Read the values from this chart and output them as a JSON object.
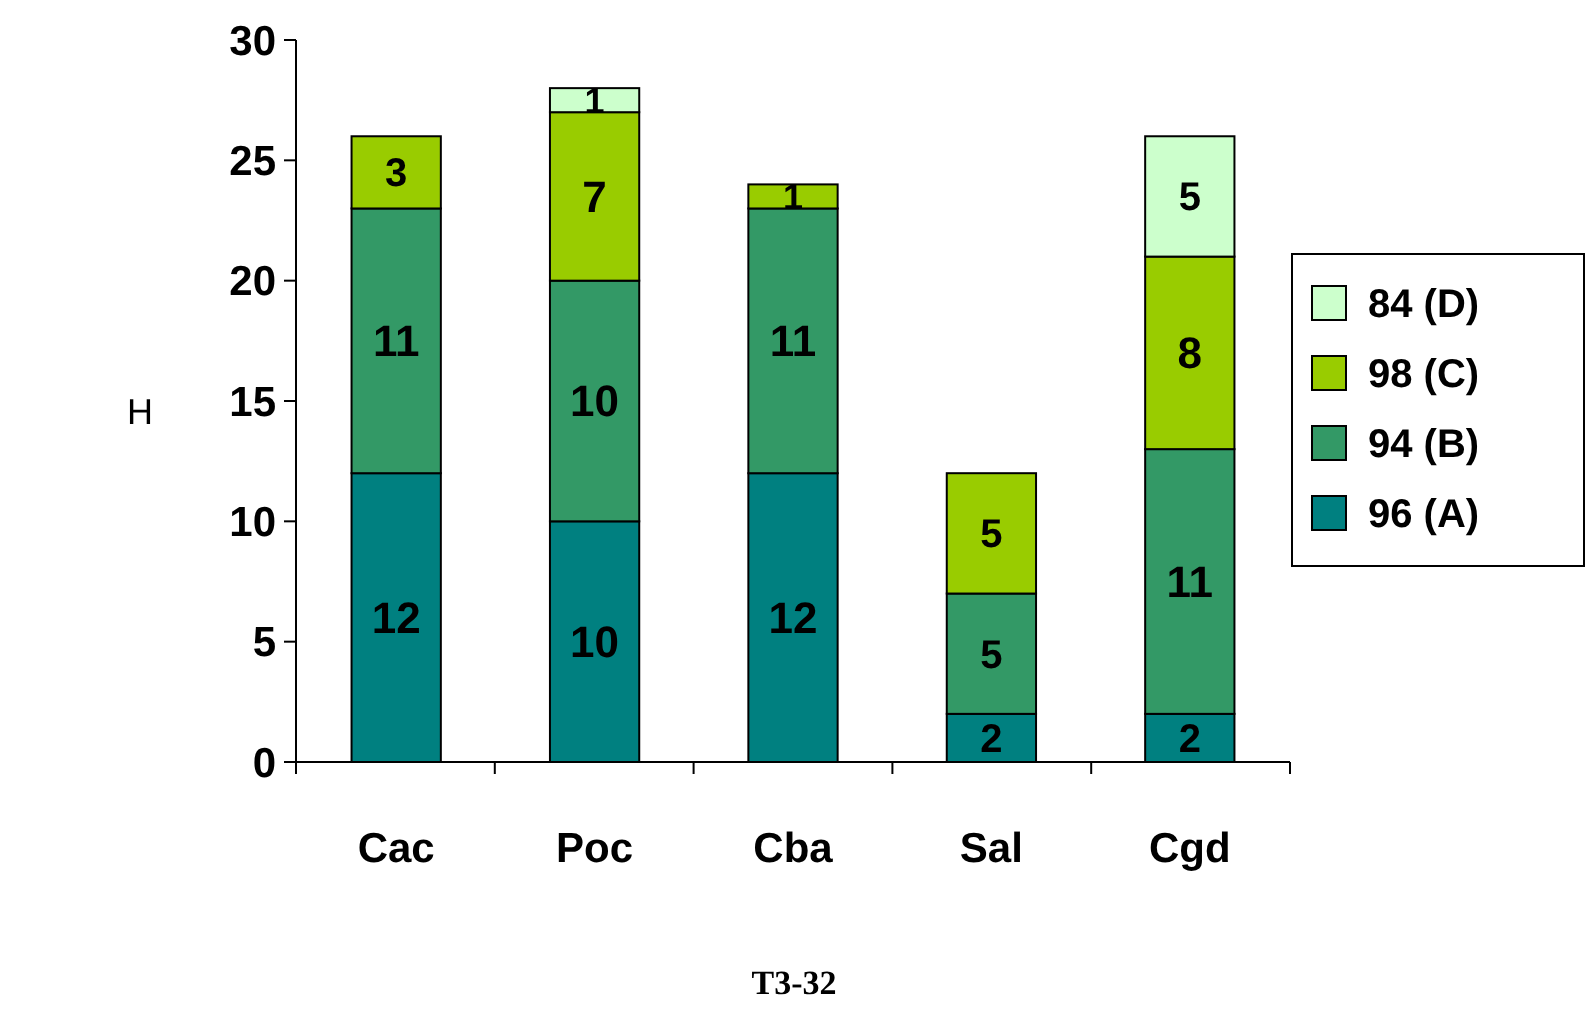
{
  "chart_data": {
    "type": "bar",
    "title": "T3-32",
    "ylabel": "H",
    "categories": [
      "Cac",
      "Poc",
      "Cba",
      "Sal",
      "Cgd"
    ],
    "stacked": true,
    "data_labels": true,
    "legend": "right",
    "ylim": [
      0,
      30
    ],
    "yticks": [
      0,
      5,
      10,
      15,
      20,
      25,
      30
    ],
    "series": [
      {
        "name": "96 (A)",
        "color": "#008080",
        "values": [
          12,
          10,
          12,
          2,
          2
        ]
      },
      {
        "name": "94 (B)",
        "color": "#339966",
        "values": [
          11,
          10,
          11,
          5,
          11
        ]
      },
      {
        "name": "98 (C)",
        "color": "#99cc00",
        "values": [
          3,
          7,
          1,
          5,
          8
        ]
      },
      {
        "name": "84 (D)",
        "color": "#ccffcc",
        "values": [
          null,
          1,
          null,
          null,
          5
        ]
      }
    ]
  }
}
